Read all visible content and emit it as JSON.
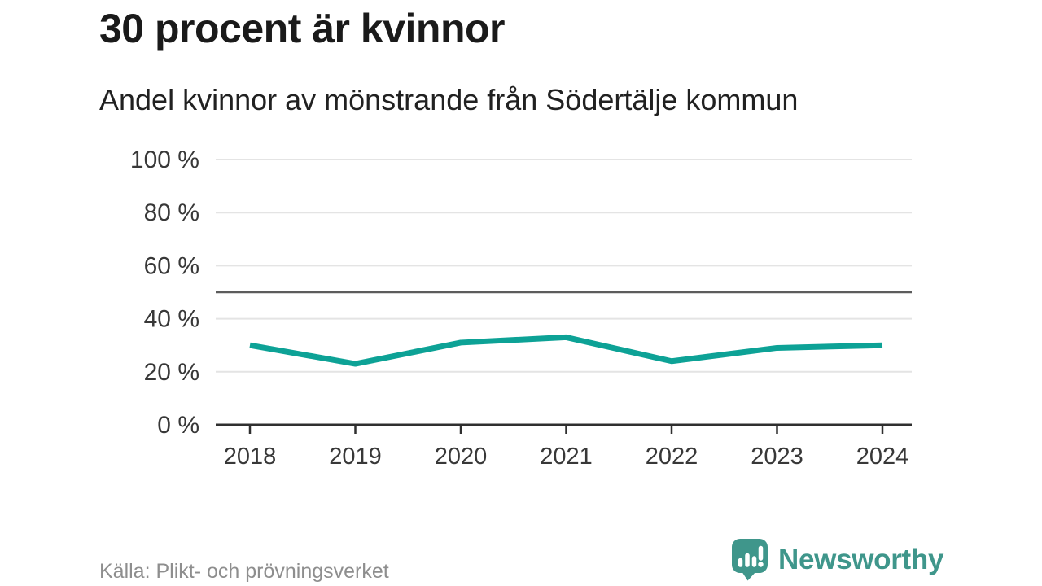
{
  "title": "30 procent är kvinnor",
  "subtitle": "Andel kvinnor av mönstrande från Södertälje kommun",
  "source": "Källa: Plikt- och prövningsverket",
  "brand": {
    "name": "Newsworthy",
    "icon": "newsworthy-chart-bubble-icon",
    "color": "#3f968b"
  },
  "colors": {
    "line": "#0da296",
    "grid": "#e4e4e4",
    "axis": "#2f2f2f",
    "reference_line": "#5c5c5c",
    "tick_label": "#383838",
    "title": "#1a1a1a",
    "subtitle": "#212121",
    "source": "#8e8e8e"
  },
  "chart_data": {
    "type": "line",
    "title": "30 procent är kvinnor",
    "subtitle": "Andel kvinnor av mönstrande från Södertälje kommun",
    "x": [
      2018,
      2019,
      2020,
      2021,
      2022,
      2023,
      2024
    ],
    "series": [
      {
        "name": "Andel kvinnor av mönstrande",
        "unit": "%",
        "values": [
          30,
          23,
          31,
          33,
          24,
          29,
          30
        ]
      }
    ],
    "ylim": [
      0,
      100
    ],
    "yticks": [
      0,
      20,
      40,
      60,
      80,
      100
    ],
    "ytick_format": "{v} %",
    "reference_line": 50,
    "grid": true,
    "legend": false,
    "xlabel": "",
    "ylabel": ""
  }
}
